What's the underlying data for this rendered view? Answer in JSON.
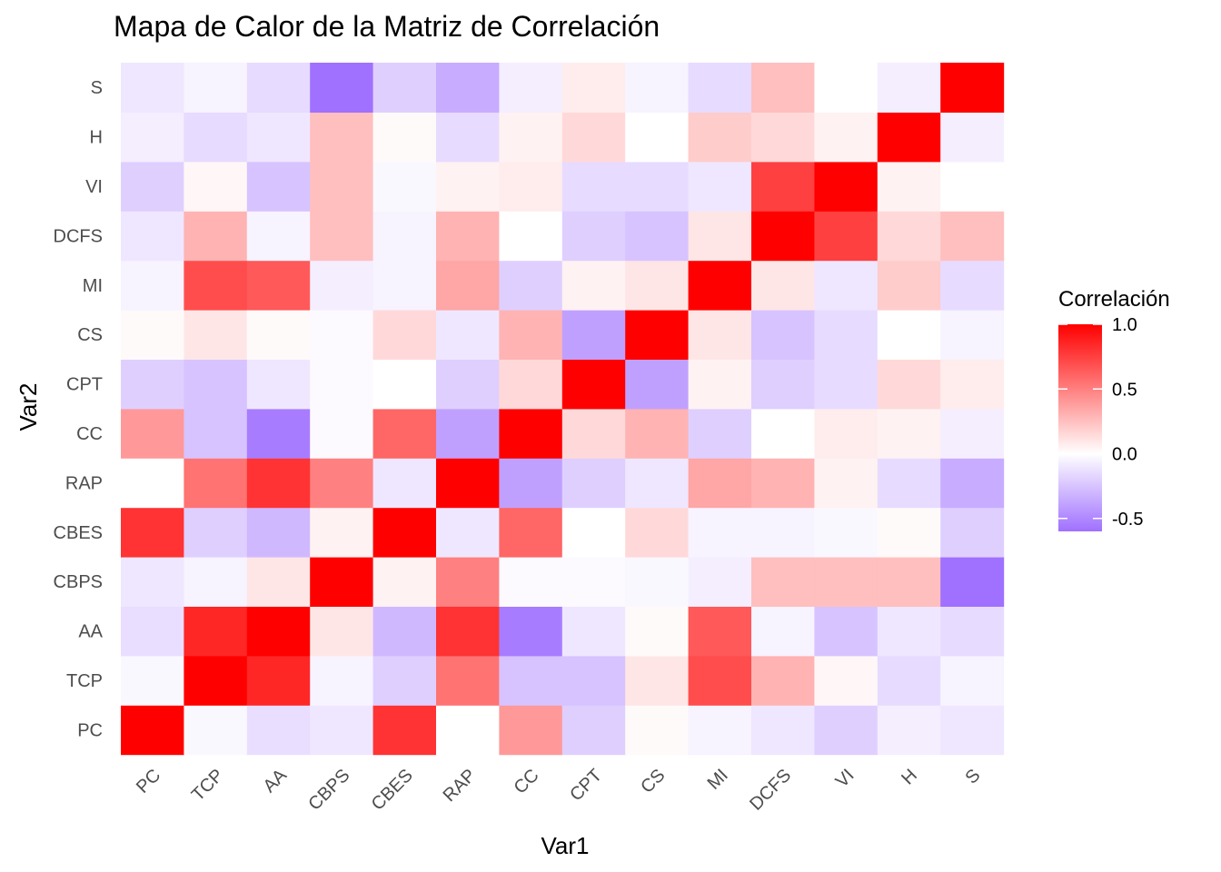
{
  "chart_data": {
    "type": "heatmap",
    "title": "Mapa de Calor de la Matriz de Correlación",
    "xlabel": "Var1",
    "ylabel": "Var2",
    "variables": [
      "PC",
      "TCP",
      "AA",
      "CBPS",
      "CBES",
      "RAP",
      "CC",
      "CPT",
      "CS",
      "MI",
      "DCFS",
      "VI",
      "H",
      "S"
    ],
    "matrix": [
      [
        1.0,
        -0.03,
        -0.14,
        -0.1,
        0.8,
        0.0,
        0.4,
        -0.2,
        0.02,
        -0.05,
        -0.1,
        -0.2,
        -0.07,
        -0.1
      ],
      [
        -0.03,
        1.0,
        0.85,
        -0.05,
        -0.2,
        0.55,
        -0.25,
        -0.25,
        0.1,
        0.7,
        0.3,
        0.03,
        -0.15,
        -0.05
      ],
      [
        -0.14,
        0.85,
        1.0,
        0.1,
        -0.3,
        0.8,
        -0.55,
        -0.1,
        0.02,
        0.65,
        -0.05,
        -0.25,
        -0.1,
        -0.15
      ],
      [
        -0.1,
        -0.05,
        0.1,
        1.0,
        0.05,
        0.5,
        -0.02,
        -0.02,
        -0.02,
        -0.07,
        0.25,
        0.25,
        0.25,
        -0.6
      ],
      [
        0.8,
        -0.2,
        -0.3,
        0.05,
        1.0,
        -0.1,
        0.6,
        0.0,
        0.15,
        -0.05,
        -0.05,
        -0.03,
        0.02,
        -0.2
      ],
      [
        0.0,
        0.55,
        0.8,
        0.5,
        -0.1,
        1.0,
        -0.4,
        -0.2,
        -0.1,
        0.35,
        0.3,
        0.05,
        -0.15,
        -0.35
      ],
      [
        0.4,
        -0.25,
        -0.55,
        -0.02,
        0.6,
        -0.4,
        1.0,
        0.15,
        0.3,
        -0.2,
        0.0,
        0.07,
        0.05,
        -0.07
      ],
      [
        -0.2,
        -0.25,
        -0.1,
        -0.02,
        0.0,
        -0.2,
        0.15,
        1.0,
        -0.4,
        0.05,
        -0.2,
        -0.15,
        0.15,
        0.07
      ],
      [
        0.02,
        0.1,
        0.02,
        -0.03,
        0.15,
        -0.1,
        0.3,
        -0.4,
        1.0,
        0.1,
        -0.25,
        -0.15,
        0.0,
        -0.05
      ],
      [
        -0.05,
        0.7,
        0.65,
        -0.07,
        -0.05,
        0.35,
        -0.2,
        0.05,
        0.1,
        1.0,
        0.1,
        -0.1,
        0.2,
        -0.15
      ],
      [
        -0.1,
        0.3,
        -0.05,
        0.25,
        -0.05,
        0.3,
        0.0,
        -0.2,
        -0.25,
        0.1,
        1.0,
        0.75,
        0.15,
        0.25
      ],
      [
        -0.2,
        0.03,
        -0.25,
        0.25,
        -0.03,
        0.05,
        0.07,
        -0.15,
        -0.15,
        -0.1,
        0.75,
        1.0,
        0.05,
        0.0
      ],
      [
        -0.07,
        -0.15,
        -0.1,
        0.25,
        0.02,
        -0.15,
        0.05,
        0.15,
        0.0,
        0.2,
        0.15,
        0.05,
        1.0,
        -0.07
      ],
      [
        -0.1,
        -0.05,
        -0.15,
        -0.6,
        -0.2,
        -0.35,
        -0.07,
        0.07,
        -0.05,
        -0.15,
        0.25,
        0.0,
        -0.07,
        1.0
      ]
    ],
    "legend": {
      "title": "Correlación",
      "placement": "right",
      "ticks": [
        "1.0",
        "0.5",
        "0.0",
        "-0.5"
      ],
      "tick_values": [
        1.0,
        0.5,
        0.0,
        -0.5
      ],
      "range": [
        -0.6,
        1.0
      ],
      "low_color": "#a070ff",
      "mid_color": "#ffffff",
      "high_color": "#ff0000"
    },
    "grid": true
  }
}
